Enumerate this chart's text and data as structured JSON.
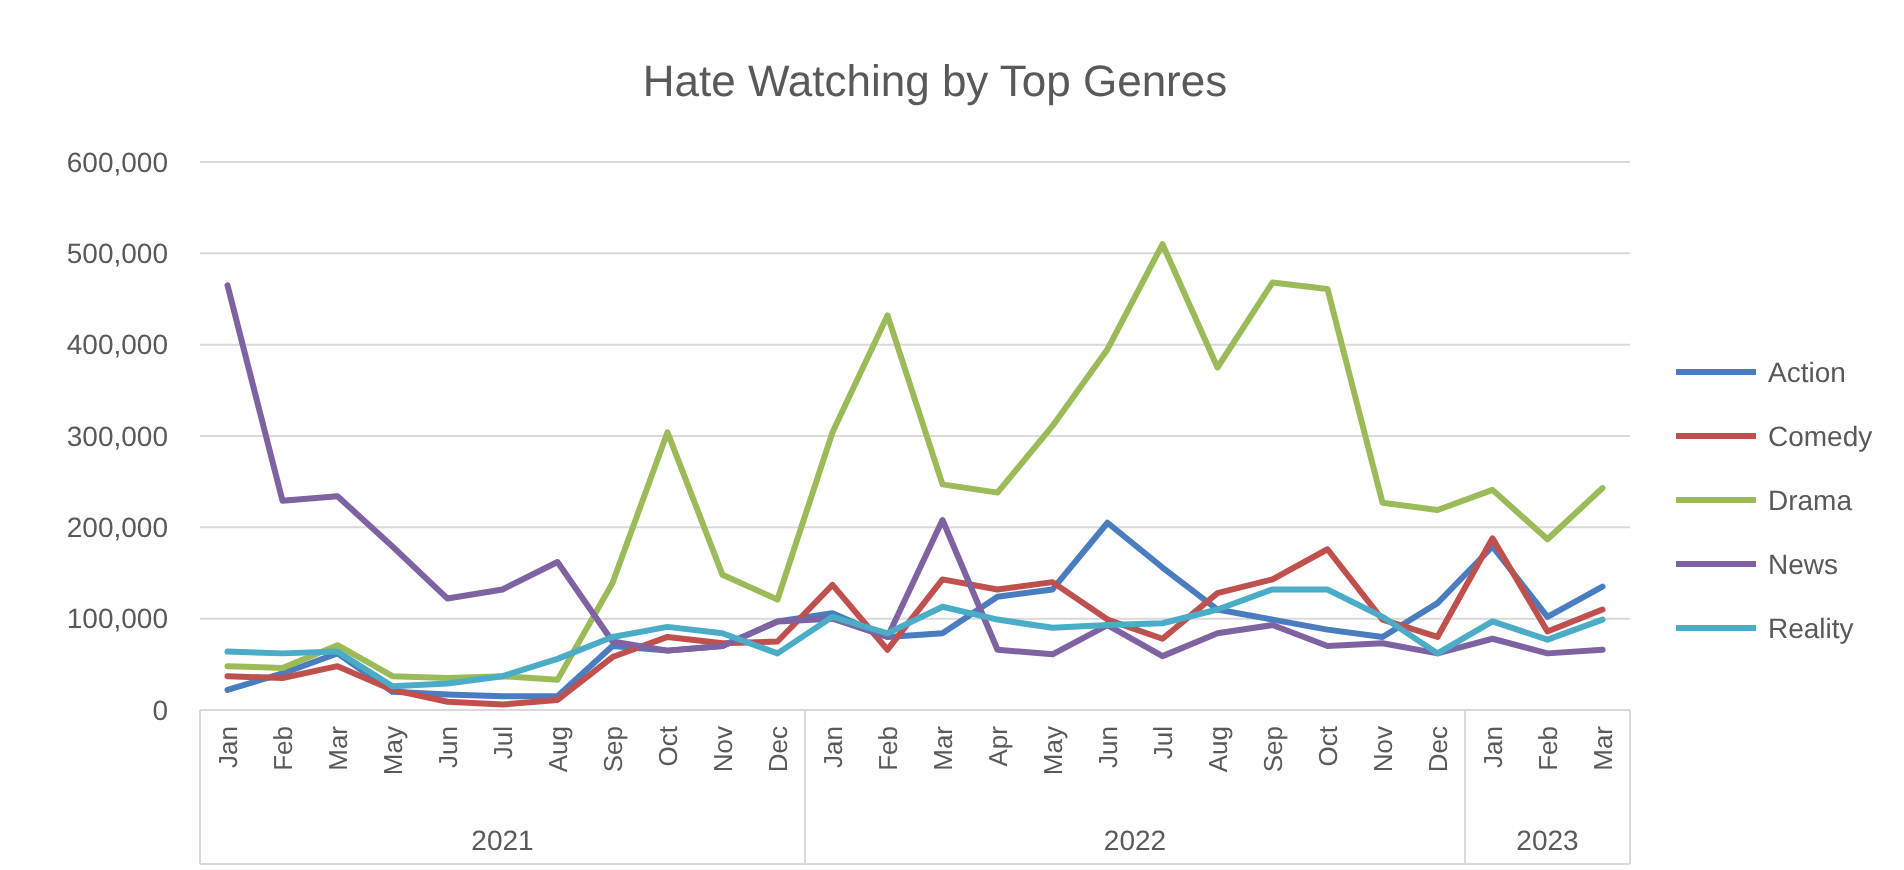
{
  "chart_data": {
    "type": "line",
    "title": "Hate Watching by Top Genres",
    "categories": [
      "Jan",
      "Feb",
      "Mar",
      "May",
      "Jun",
      "Jul",
      "Aug",
      "Sep",
      "Oct",
      "Nov",
      "Dec",
      "Jan",
      "Feb",
      "Mar",
      "Apr",
      "May",
      "Jun",
      "Jul",
      "Aug",
      "Sep",
      "Oct",
      "Nov",
      "Dec",
      "Jan",
      "Feb",
      "Mar"
    ],
    "annotations": [
      "2021",
      "2022",
      "2023"
    ],
    "series": [
      {
        "name": "Action",
        "color": "#4a7cc0",
        "values": [
          22000,
          40000,
          62000,
          20000,
          17000,
          15000,
          15000,
          70000,
          65000,
          70000,
          97000,
          106000,
          80000,
          84000,
          124000,
          132000,
          205000,
          156000,
          110000,
          99000,
          88000,
          80000,
          117000,
          179000,
          102000,
          135000
        ]
      },
      {
        "name": "Comedy",
        "color": "#c0504d",
        "values": [
          37000,
          35000,
          48000,
          22000,
          9000,
          6000,
          11000,
          58000,
          80000,
          73000,
          75000,
          137000,
          66000,
          143000,
          132000,
          140000,
          99000,
          78000,
          128000,
          143000,
          176000,
          99000,
          80000,
          188000,
          86000,
          110000
        ]
      },
      {
        "name": "Drama",
        "color": "#9bbb59",
        "values": [
          48000,
          46000,
          71000,
          37000,
          35000,
          37000,
          33000,
          139000,
          304000,
          148000,
          121000,
          304000,
          432000,
          247000,
          238000,
          311000,
          395000,
          510000,
          375000,
          468000,
          461000,
          227000,
          219000,
          241000,
          187000,
          243000
        ]
      },
      {
        "name": "News",
        "color": "#7e62a1",
        "values": [
          465000,
          229000,
          234000,
          179000,
          122000,
          132000,
          162000,
          75000,
          65000,
          70000,
          97000,
          100000,
          80000,
          208000,
          66000,
          61000,
          93000,
          59000,
          84000,
          93000,
          70000,
          73000,
          62000,
          78000,
          62000,
          66000
        ]
      },
      {
        "name": "Reality",
        "color": "#4aacc6",
        "values": [
          64000,
          62000,
          64000,
          26000,
          29000,
          37000,
          56000,
          80000,
          91000,
          84000,
          62000,
          102000,
          84000,
          113000,
          99000,
          90000,
          93000,
          95000,
          110000,
          132000,
          132000,
          102000,
          62000,
          97000,
          77000,
          99000
        ]
      }
    ],
    "ylim": [
      0,
      600000
    ],
    "yticks": [
      {
        "value": 0,
        "label": "0"
      },
      {
        "value": 100000,
        "label": "100,000"
      },
      {
        "value": 200000,
        "label": "200,000"
      },
      {
        "value": 300000,
        "label": "300,000"
      },
      {
        "value": 400000,
        "label": "400,000"
      },
      {
        "value": 500000,
        "label": "500,000"
      },
      {
        "value": 600000,
        "label": "600,000"
      }
    ],
    "grid": "y",
    "legend": "right",
    "marker": "none",
    "line_style": "solid"
  }
}
